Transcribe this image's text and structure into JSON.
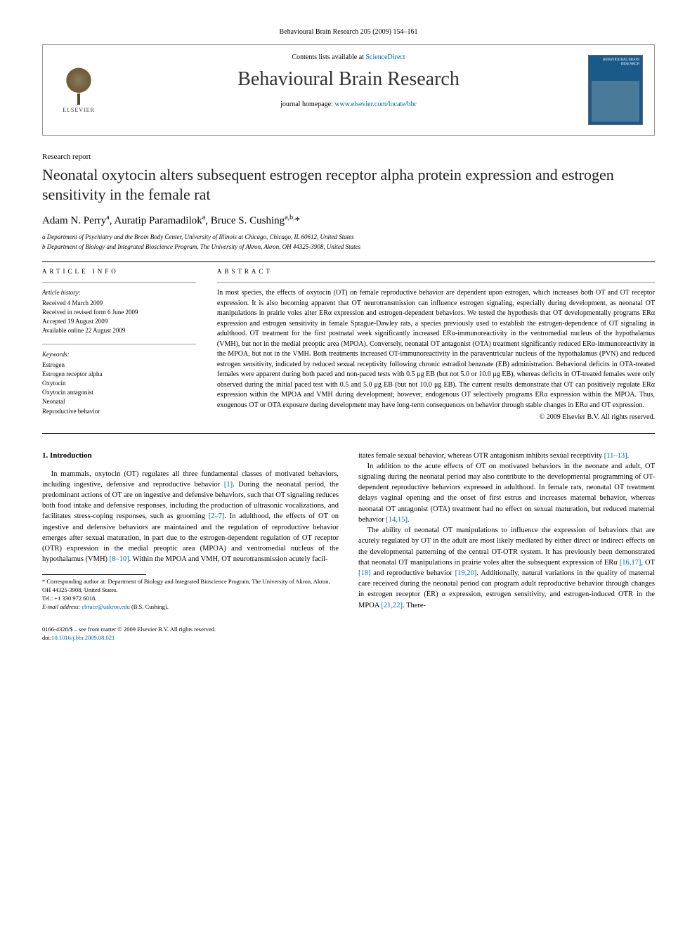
{
  "header": {
    "citation": "Behavioural Brain Research 205 (2009) 154–161",
    "contents_line_prefix": "Contents lists available at ",
    "contents_link": "ScienceDirect",
    "journal_name": "Behavioural Brain Research",
    "homepage_prefix": "journal homepage: ",
    "homepage_url": "www.elsevier.com/locate/bbr",
    "publisher": "ELSEVIER",
    "cover_title": "BEHAVIOURAL BRAIN RESEARCH"
  },
  "article": {
    "type": "Research report",
    "title": "Neonatal oxytocin alters subsequent estrogen receptor alpha protein expression and estrogen sensitivity in the female rat",
    "authors_html": "Adam N. Perry<sup>a</sup>, Auratip Paramadilok<sup>a</sup>, Bruce S. Cushing<sup>a,b,</sup>",
    "affiliations": [
      "a Department of Psychiatry and the Brain Body Center, University of Illinois at Chicago, Chicago, IL 60612, United States",
      "b Department of Biology and Integrated Bioscience Program, The University of Akron, Akron, OH 44325-3908, United States"
    ]
  },
  "info": {
    "heading": "ARTICLE INFO",
    "history_label": "Article history:",
    "history": [
      "Received 4 March 2009",
      "Received in revised form 6 June 2009",
      "Accepted 19 August 2009",
      "Available online 22 August 2009"
    ],
    "keywords_label": "Keywords:",
    "keywords": [
      "Estrogen",
      "Estrogen receptor alpha",
      "Oxytocin",
      "Oxytocin antagonist",
      "Neonatal",
      "Reproductive behavior"
    ]
  },
  "abstract": {
    "heading": "ABSTRACT",
    "text": "In most species, the effects of oxytocin (OT) on female reproductive behavior are dependent upon estrogen, which increases both OT and OT receptor expression. It is also becoming apparent that OT neurotransmission can influence estrogen signaling, especially during development, as neonatal OT manipulations in prairie voles alter ERα expression and estrogen-dependent behaviors. We tested the hypothesis that OT developmentally programs ERα expression and estrogen sensitivity in female Sprague-Dawley rats, a species previously used to establish the estrogen-dependence of OT signaling in adulthood. OT treatment for the first postnatal week significantly increased ERα-immunoreactivity in the ventromedial nucleus of the hypothalamus (VMH), but not in the medial preoptic area (MPOA). Conversely, neonatal OT antagonist (OTA) treatment significantly reduced ERα-immunoreactivity in the MPOA, but not in the VMH. Both treatments increased OT-immunoreactivity in the paraventricular nucleus of the hypothalamus (PVN) and reduced estrogen sensitivity, indicated by reduced sexual receptivity following chronic estradiol benzoate (EB) administration. Behavioral deficits in OTA-treated females were apparent during both paced and non-paced tests with 0.5 μg EB (but not 5.0 or 10.0 μg EB), whereas deficits in OT-treated females were only observed during the initial paced test with 0.5 and 5.0 μg EB (but not 10.0 μg EB). The current results demonstrate that OT can positively regulate ERα expression within the MPOA and VMH during development; however, endogenous OT selectively programs ERα expression within the MPOA. Thus, exogenous OT or OTA exposure during development may have long-term consequences on behavior through stable changes in ERα and OT expression.",
    "copyright": "© 2009 Elsevier B.V. All rights reserved."
  },
  "body": {
    "section_heading": "1. Introduction",
    "p1_a": "In mammals, oxytocin (OT) regulates all three fundamental classes of motivated behaviors, including ingestive, defensive and reproductive behavior ",
    "p1_ref1": "[1]",
    "p1_b": ". During the neonatal period, the predominant actions of OT are on ingestive and defensive behaviors, such that OT signaling reduces both food intake and defensive responses, including the production of ultrasonic vocalizations, and facilitates stress-coping responses, such as grooming ",
    "p1_ref2": "[2–7]",
    "p1_c": ". In adulthood, the effects of OT on ingestive and defensive behaviors are maintained and the regulation of reproductive behavior emerges after sexual maturation, in part due to the estrogen-dependent regulation of OT receptor (OTR) expression in the medial preoptic area (MPOA) and ventromedial nucleus of the hypothalamus (VMH) ",
    "p1_ref3": "[8–10]",
    "p1_d": ". Within the MPOA and VMH, OT neurotransmission acutely facil-",
    "p1_cont": "itates female sexual behavior, whereas OTR antagonism inhibits sexual receptivity ",
    "p1_ref4": "[11–13]",
    "p1_e": ".",
    "p2_a": "In addition to the acute effects of OT on motivated behaviors in the neonate and adult, OT signaling during the neonatal period may also contribute to the developmental programming of OT-dependent reproductive behaviors expressed in adulthood. In female rats, neonatal OT treatment delays vaginal opening and the onset of first estrus and increases maternal behavior, whereas neonatal OT antagonist (OTA) treatment had no effect on sexual maturation, but reduced maternal behavior ",
    "p2_ref1": "[14,15]",
    "p2_b": ".",
    "p3_a": "The ability of neonatal OT manipulations to influence the expression of behaviors that are acutely regulated by OT in the adult are most likely mediated by either direct or indirect effects on the developmental patterning of the central OT-OTR system. It has previously been demonstrated that neonatal OT manipulations in prairie voles alter the subsequent expression of ERα ",
    "p3_ref1": "[16,17]",
    "p3_b": ", OT ",
    "p3_ref2": "[18]",
    "p3_c": " and reproductive behavior ",
    "p3_ref3": "[19,20]",
    "p3_d": ". Additionally, natural variations in the quality of maternal care received during the neonatal period can program adult reproductive behavior through changes in estrogen receptor (ER) α expression, estrogen sensitivity, and estrogen-induced OTR in the MPOA ",
    "p3_ref4": "[21,22]",
    "p3_e": ". There-"
  },
  "footnotes": {
    "corresponding": "* Corresponding author at: Department of Biology and Integrated Bioscience Program, The University of Akron, Akron, OH 44325-3908, United States.",
    "tel": "Tel.: +1 330 972 6018.",
    "email_label": "E-mail address: ",
    "email": "cbruce@uakron.edu",
    "email_suffix": " (B.S. Cushing)."
  },
  "footer": {
    "issn": "0166-4328/$ – see front matter © 2009 Elsevier B.V. All rights reserved.",
    "doi_label": "doi:",
    "doi": "10.1016/j.bbr.2009.08.021"
  },
  "colors": {
    "link": "#0066aa",
    "text": "#000000",
    "border": "#999999",
    "cover_bg": "#1a5a8a"
  }
}
